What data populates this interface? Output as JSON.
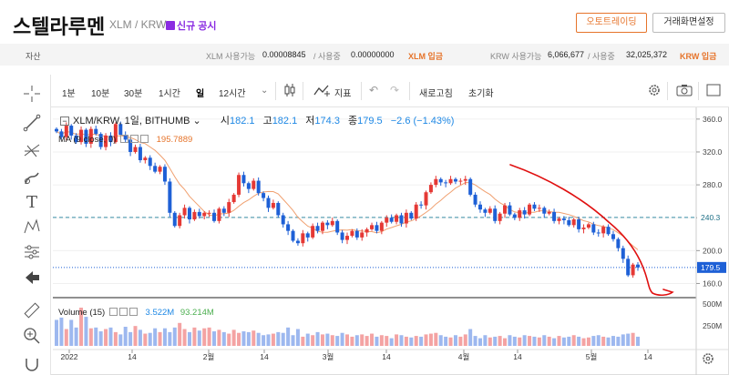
{
  "header": {
    "coin_name": "스텔라루멘",
    "pair": "XLM / KRW",
    "notice": "신규 공시",
    "auto_trade_label": "오토트레이딩",
    "screen_settings_label": "거래화면설정"
  },
  "assets": {
    "label": "자산",
    "xlm_available_label": "XLM 사용가능",
    "xlm_available": "0.00008845",
    "in_use_label": "/ 사용중",
    "xlm_in_use": "0.00000000",
    "xlm_deposit": "XLM 입금",
    "krw_available_label": "KRW 사용가능",
    "krw_available": "6,066,677",
    "krw_in_use_label": "/ 사용중",
    "krw_in_use": "32,025,372",
    "krw_deposit": "KRW 입금"
  },
  "toolbar": {
    "intervals": [
      "1분",
      "10분",
      "30분",
      "1시간",
      "일",
      "12시간"
    ],
    "active_interval": "일",
    "indicator_label": "지표",
    "refresh_label": "새로고침",
    "reset_label": "초기화"
  },
  "legend": {
    "symbol": "XLM/KRW, 1일, BITHUMB",
    "open_label": "시",
    "open": "182.1",
    "high_label": "고",
    "high": "182.1",
    "low_label": "저",
    "low": "174.3",
    "close_label": "종",
    "close": "179.5",
    "change": "−2.6 (−1.43%)"
  },
  "ma": {
    "label": "MA (9 close, 0)",
    "value": "195.7889"
  },
  "volume": {
    "label": "Volume (15)",
    "value1": "3.522M",
    "value2": "93.214M"
  },
  "chart_data": {
    "type": "candlestick",
    "y_axis_ticks": [
      "360.0",
      "320.0",
      "280.0",
      "240.0",
      "200.0",
      "160.0"
    ],
    "ylim": [
      145,
      372
    ],
    "volume_axis_ticks": [
      "500M",
      "250M"
    ],
    "x_axis_labels": [
      "2022",
      "14",
      "2월",
      "14",
      "3월",
      "14",
      "4월",
      "14",
      "5월",
      "14"
    ],
    "last_price": "179.5",
    "dashed_level": "240.3",
    "colors": {
      "up": "#e53935",
      "down": "#1e60d6",
      "ma": "#f0a070",
      "annotation": "#e01010"
    },
    "closes": [
      345,
      338,
      352,
      340,
      332,
      347,
      330,
      348,
      342,
      326,
      340,
      332,
      354,
      341,
      335,
      320,
      326,
      310,
      313,
      303,
      296,
      302,
      284,
      246,
      230,
      243,
      252,
      238,
      247,
      242,
      246,
      246,
      236,
      251,
      246,
      259,
      268,
      292,
      282,
      275,
      285,
      270,
      264,
      252,
      258,
      243,
      232,
      224,
      212,
      209,
      221,
      216,
      230,
      224,
      234,
      231,
      236,
      222,
      213,
      218,
      224,
      216,
      222,
      226,
      231,
      224,
      234,
      240,
      235,
      243,
      233,
      246,
      239,
      256,
      255,
      271,
      280,
      287,
      283,
      282,
      287,
      284,
      285,
      287,
      268,
      256,
      250,
      246,
      251,
      236,
      245,
      255,
      244,
      240,
      249,
      244,
      256,
      251,
      252,
      245,
      247,
      236,
      239,
      237,
      231,
      238,
      226,
      228,
      232,
      222,
      221,
      229,
      220,
      214,
      203,
      190,
      170,
      183,
      179.5
    ],
    "volumes": [
      170,
      185,
      110,
      170,
      120,
      250,
      190,
      115,
      120,
      95,
      110,
      120,
      90,
      75,
      125,
      90,
      130,
      105,
      80,
      85,
      115,
      90,
      115,
      90,
      120,
      150,
      110,
      90,
      120,
      100,
      115,
      120,
      95,
      105,
      90,
      80,
      105,
      85,
      95,
      90,
      100,
      85,
      70,
      75,
      80,
      90,
      85,
      120,
      70,
      110,
      60,
      80,
      70,
      90,
      75,
      80,
      70,
      65,
      85,
      75,
      60,
      70,
      75,
      65,
      80,
      60,
      70,
      65,
      50,
      75,
      70,
      60,
      55,
      65,
      60,
      75,
      80,
      85,
      70,
      60,
      55,
      70,
      60,
      75,
      110,
      65,
      50,
      70,
      55,
      60,
      65,
      50,
      70,
      60,
      55,
      70,
      65,
      60,
      55,
      70,
      60,
      50,
      65,
      55,
      60,
      70,
      60,
      50,
      55,
      65,
      70,
      60,
      55,
      65,
      60,
      75,
      80,
      85,
      60
    ]
  }
}
